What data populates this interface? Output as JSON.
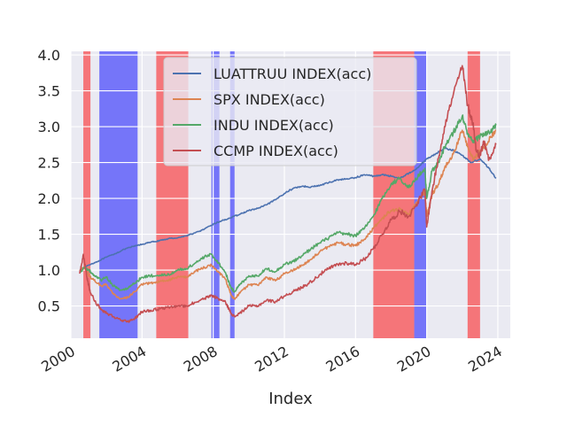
{
  "chart_data": {
    "type": "line",
    "xlabel": "Index",
    "ylabel": "",
    "xlim": [
      2000.0,
      2024.7
    ],
    "ylim": [
      0.05,
      4.05
    ],
    "x_ticks": [
      2000,
      2004,
      2008,
      2012,
      2016,
      2020,
      2024
    ],
    "x_tick_labels": [
      "2000",
      "2004",
      "2008",
      "2012",
      "2016",
      "2020",
      "2024"
    ],
    "y_ticks": [
      0.5,
      1.0,
      1.5,
      2.0,
      2.5,
      3.0,
      3.5,
      4.0
    ],
    "y_tick_labels": [
      "0.5",
      "1.0",
      "1.5",
      "2.0",
      "2.5",
      "3.0",
      "3.5",
      "4.0"
    ],
    "grid": true,
    "legend_position": "upper-center",
    "shaded_regions": [
      {
        "start": 2000.7,
        "end": 2001.1,
        "color": "#ff0000"
      },
      {
        "start": 2001.6,
        "end": 2003.75,
        "color": "#0000ff"
      },
      {
        "start": 2004.8,
        "end": 2006.6,
        "color": "#ff0000"
      },
      {
        "start": 2007.9,
        "end": 2008.35,
        "color": "#0000ff"
      },
      {
        "start": 2008.95,
        "end": 2009.2,
        "color": "#0000ff"
      },
      {
        "start": 2017.0,
        "end": 2019.3,
        "color": "#ff0000"
      },
      {
        "start": 2019.3,
        "end": 2020.0,
        "color": "#0000ff"
      },
      {
        "start": 2022.3,
        "end": 2023.0,
        "color": "#ff0000"
      }
    ],
    "series": [
      {
        "name": "LUATTRUU INDEX(acc)",
        "color": "#4c72b0",
        "x": [
          2000.5,
          2001.0,
          2001.5,
          2002.0,
          2002.5,
          2003.0,
          2003.5,
          2004.0,
          2004.5,
          2005.0,
          2005.5,
          2006.0,
          2006.5,
          2007.0,
          2007.5,
          2008.0,
          2008.5,
          2009.0,
          2009.5,
          2010.0,
          2010.5,
          2011.0,
          2011.5,
          2012.0,
          2012.5,
          2013.0,
          2013.5,
          2014.0,
          2014.5,
          2015.0,
          2015.5,
          2016.0,
          2016.5,
          2017.0,
          2017.5,
          2018.0,
          2018.5,
          2019.0,
          2019.5,
          2020.0,
          2020.5,
          2021.0,
          2021.5,
          2022.0,
          2022.5,
          2023.0,
          2023.5,
          2023.9
        ],
        "values": [
          1.0,
          1.07,
          1.12,
          1.18,
          1.23,
          1.29,
          1.33,
          1.36,
          1.39,
          1.41,
          1.44,
          1.45,
          1.48,
          1.52,
          1.57,
          1.64,
          1.69,
          1.73,
          1.78,
          1.83,
          1.86,
          1.91,
          1.98,
          2.07,
          2.14,
          2.17,
          2.16,
          2.18,
          2.22,
          2.26,
          2.27,
          2.29,
          2.33,
          2.31,
          2.33,
          2.31,
          2.28,
          2.35,
          2.43,
          2.55,
          2.62,
          2.7,
          2.67,
          2.6,
          2.5,
          2.55,
          2.42,
          2.28
        ]
      },
      {
        "name": "SPX INDEX(acc)",
        "color": "#dd8452",
        "x": [
          2000.5,
          2000.8,
          2001.0,
          2001.3,
          2001.7,
          2002.0,
          2002.4,
          2002.8,
          2003.2,
          2003.6,
          2004.0,
          2004.5,
          2005.0,
          2005.5,
          2006.0,
          2006.5,
          2007.0,
          2007.5,
          2007.9,
          2008.3,
          2008.7,
          2009.0,
          2009.2,
          2009.5,
          2010.0,
          2010.5,
          2011.0,
          2011.5,
          2012.0,
          2012.5,
          2013.0,
          2013.5,
          2014.0,
          2014.5,
          2015.0,
          2015.5,
          2016.0,
          2016.5,
          2017.0,
          2017.5,
          2018.0,
          2018.5,
          2019.0,
          2019.5,
          2019.9,
          2020.0,
          2020.3,
          2020.7,
          2021.0,
          2021.5,
          2022.0,
          2022.3,
          2022.6,
          2022.9,
          2023.2,
          2023.6,
          2023.9
        ],
        "values": [
          1.0,
          1.05,
          0.92,
          0.86,
          0.78,
          0.8,
          0.66,
          0.6,
          0.62,
          0.7,
          0.8,
          0.82,
          0.84,
          0.86,
          0.91,
          0.9,
          0.98,
          1.04,
          1.07,
          0.97,
          0.87,
          0.65,
          0.6,
          0.68,
          0.8,
          0.79,
          0.9,
          0.85,
          0.95,
          1.0,
          1.07,
          1.15,
          1.26,
          1.33,
          1.38,
          1.36,
          1.34,
          1.43,
          1.58,
          1.72,
          1.83,
          1.85,
          1.78,
          1.96,
          2.1,
          1.75,
          2.05,
          2.22,
          2.42,
          2.62,
          2.95,
          2.72,
          2.55,
          2.62,
          2.72,
          2.85,
          2.95
        ]
      },
      {
        "name": "INDU INDEX(acc)",
        "color": "#55a868",
        "x": [
          2000.5,
          2000.8,
          2001.0,
          2001.3,
          2001.7,
          2002.0,
          2002.4,
          2002.8,
          2003.2,
          2003.6,
          2004.0,
          2004.5,
          2005.0,
          2005.5,
          2006.0,
          2006.5,
          2007.0,
          2007.5,
          2007.9,
          2008.3,
          2008.7,
          2009.0,
          2009.2,
          2009.5,
          2010.0,
          2010.5,
          2011.0,
          2011.5,
          2012.0,
          2012.5,
          2013.0,
          2013.5,
          2014.0,
          2014.5,
          2015.0,
          2015.5,
          2016.0,
          2016.5,
          2017.0,
          2017.5,
          2018.0,
          2018.5,
          2019.0,
          2019.5,
          2019.9,
          2020.0,
          2020.3,
          2020.7,
          2021.0,
          2021.5,
          2022.0,
          2022.3,
          2022.6,
          2022.9,
          2023.2,
          2023.6,
          2023.9
        ],
        "values": [
          0.98,
          1.03,
          1.0,
          0.93,
          0.86,
          0.9,
          0.78,
          0.72,
          0.74,
          0.82,
          0.9,
          0.92,
          0.93,
          0.94,
          1.0,
          1.02,
          1.1,
          1.18,
          1.22,
          1.1,
          0.96,
          0.75,
          0.7,
          0.8,
          0.92,
          0.92,
          1.02,
          0.98,
          1.08,
          1.12,
          1.2,
          1.3,
          1.38,
          1.45,
          1.52,
          1.5,
          1.48,
          1.58,
          1.75,
          2.0,
          2.2,
          2.28,
          2.15,
          2.3,
          2.42,
          2.0,
          2.38,
          2.5,
          2.72,
          2.92,
          3.15,
          2.9,
          2.78,
          2.85,
          2.9,
          2.92,
          3.02
        ]
      },
      {
        "name": "CCMP INDEX(acc)",
        "color": "#c44e52",
        "x": [
          2000.5,
          2000.7,
          2000.9,
          2001.1,
          2001.4,
          2001.7,
          2002.0,
          2002.4,
          2002.8,
          2003.2,
          2003.6,
          2004.0,
          2004.5,
          2005.0,
          2005.5,
          2006.0,
          2006.5,
          2007.0,
          2007.5,
          2007.9,
          2008.3,
          2008.7,
          2009.0,
          2009.2,
          2009.5,
          2010.0,
          2010.5,
          2011.0,
          2011.5,
          2012.0,
          2012.5,
          2013.0,
          2013.5,
          2014.0,
          2014.5,
          2015.0,
          2015.5,
          2016.0,
          2016.5,
          2017.0,
          2017.5,
          2018.0,
          2018.5,
          2019.0,
          2019.5,
          2019.9,
          2020.0,
          2020.3,
          2020.7,
          2021.0,
          2021.5,
          2022.0,
          2022.3,
          2022.6,
          2022.8,
          2023.0,
          2023.2,
          2023.5,
          2023.9
        ],
        "values": [
          0.95,
          1.22,
          0.9,
          0.68,
          0.55,
          0.45,
          0.4,
          0.35,
          0.3,
          0.28,
          0.33,
          0.42,
          0.44,
          0.46,
          0.48,
          0.5,
          0.5,
          0.55,
          0.6,
          0.65,
          0.6,
          0.55,
          0.4,
          0.35,
          0.4,
          0.5,
          0.5,
          0.58,
          0.56,
          0.64,
          0.7,
          0.76,
          0.84,
          0.94,
          1.02,
          1.08,
          1.1,
          1.08,
          1.15,
          1.3,
          1.5,
          1.7,
          1.82,
          1.75,
          1.95,
          2.12,
          1.6,
          2.1,
          2.6,
          3.0,
          3.45,
          3.85,
          3.3,
          3.05,
          2.65,
          2.6,
          2.8,
          2.55,
          2.75
        ]
      }
    ]
  }
}
